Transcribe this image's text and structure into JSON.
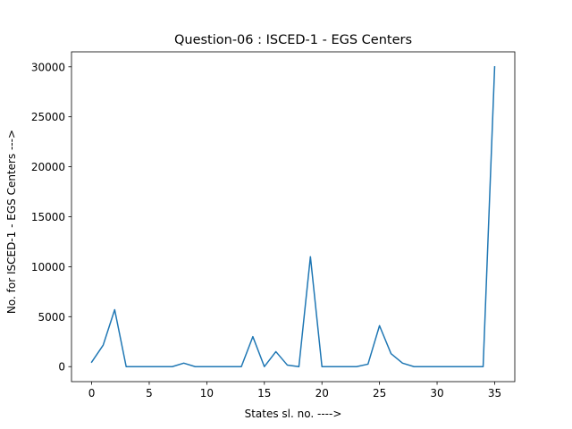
{
  "chart_data": {
    "type": "line",
    "title": "Question-06 : ISCED-1 - EGS Centers",
    "xlabel": "States sl. no. ---->",
    "ylabel": "No. for ISCED-1 - EGS Centers --->",
    "xlim": [
      -1.75,
      36.75
    ],
    "ylim": [
      -1500,
      31500
    ],
    "xticks": [
      0,
      5,
      10,
      15,
      20,
      25,
      30,
      35
    ],
    "yticks": [
      0,
      5000,
      10000,
      15000,
      20000,
      25000,
      30000
    ],
    "grid": false,
    "series": [
      {
        "color": "#1f77b4",
        "x": [
          0,
          1,
          2,
          3,
          4,
          5,
          6,
          7,
          8,
          9,
          10,
          11,
          12,
          13,
          14,
          15,
          16,
          17,
          18,
          19,
          20,
          21,
          22,
          23,
          24,
          25,
          26,
          27,
          28,
          29,
          30,
          31,
          32,
          33,
          34,
          35
        ],
        "y": [
          450,
          2150,
          5700,
          0,
          0,
          0,
          0,
          0,
          350,
          0,
          0,
          0,
          0,
          0,
          3000,
          0,
          1500,
          150,
          0,
          11000,
          0,
          0,
          0,
          0,
          250,
          4100,
          1300,
          350,
          0,
          0,
          0,
          0,
          0,
          0,
          0,
          30000
        ]
      }
    ]
  }
}
